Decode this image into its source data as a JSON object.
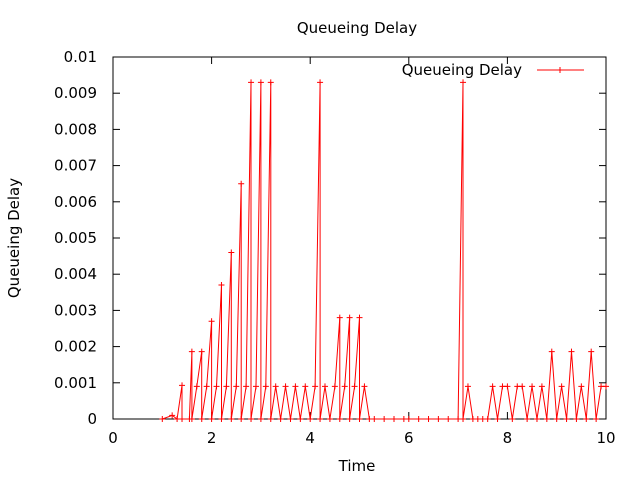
{
  "chart_data": {
    "type": "line",
    "title": "Queueing Delay",
    "xlabel": "Time",
    "ylabel": "Queueing Delay",
    "xlim": [
      0,
      10
    ],
    "ylim": [
      0,
      0.01
    ],
    "x_ticks": [
      "0",
      "2",
      "4",
      "6",
      "8",
      "10"
    ],
    "x_tick_values": [
      0,
      2,
      4,
      6,
      8,
      10
    ],
    "y_ticks": [
      "0",
      "0.001",
      "0.002",
      "0.003",
      "0.004",
      "0.005",
      "0.006",
      "0.007",
      "0.008",
      "0.009",
      "0.01"
    ],
    "y_tick_values": [
      0,
      0.001,
      0.002,
      0.003,
      0.004,
      0.005,
      0.006,
      0.007,
      0.008,
      0.009,
      0.01
    ],
    "grid": false,
    "legend_position": "top-right",
    "series": [
      {
        "name": "Queueing Delay",
        "color": "#ff0000",
        "marker": "plus",
        "x": [
          1.0,
          1.2,
          1.3,
          1.4,
          1.4,
          1.55,
          1.6,
          1.6,
          1.7,
          1.8,
          1.8,
          1.9,
          2.0,
          2.0,
          2.1,
          2.2,
          2.2,
          2.3,
          2.4,
          2.4,
          2.5,
          2.6,
          2.6,
          2.7,
          2.8,
          2.8,
          2.9,
          3.0,
          3.0,
          3.1,
          3.2,
          3.2,
          3.3,
          3.4,
          3.5,
          3.6,
          3.7,
          3.8,
          3.9,
          4.0,
          4.1,
          4.2,
          4.2,
          4.3,
          4.4,
          4.5,
          4.6,
          4.6,
          4.7,
          4.8,
          4.8,
          4.9,
          5.0,
          5.0,
          5.1,
          5.2,
          5.3,
          5.5,
          5.7,
          5.9,
          6.0,
          6.2,
          6.4,
          6.6,
          6.8,
          7.0,
          7.1,
          7.1,
          7.2,
          7.3,
          7.4,
          7.5,
          7.6,
          7.7,
          7.8,
          7.9,
          8.0,
          8.1,
          8.2,
          8.3,
          8.4,
          8.5,
          8.6,
          8.7,
          8.8,
          8.9,
          9.0,
          9.1,
          9.2,
          9.3,
          9.4,
          9.5,
          9.6,
          9.7,
          9.8,
          9.9,
          10.0
        ],
        "y": [
          0,
          0.0001,
          0,
          0.00093,
          0,
          0,
          0.00186,
          0,
          0.0009,
          0.00186,
          0,
          0.0009,
          0.0027,
          0,
          0.0009,
          0.0037,
          0,
          0.0009,
          0.0046,
          0,
          0.0009,
          0.0065,
          0,
          0.0009,
          0.0093,
          0,
          0.0009,
          0.0093,
          0,
          0.0009,
          0.0093,
          0,
          0.0009,
          0,
          0.0009,
          0,
          0.0009,
          0,
          0.0009,
          0,
          0.0009,
          0.0093,
          0,
          0.0009,
          0,
          0.0009,
          0.0028,
          0,
          0.0009,
          0.0028,
          0,
          0.0009,
          0.0028,
          0,
          0.0009,
          0,
          0,
          0,
          0,
          0,
          0,
          0,
          0,
          0,
          0,
          0,
          0.0093,
          0,
          0.0009,
          0,
          0,
          0,
          0,
          0.0009,
          0,
          0.0009,
          0.0009,
          0,
          0.0009,
          0.0009,
          0,
          0.0009,
          0,
          0.0009,
          0,
          0.00186,
          0,
          0.0009,
          0,
          0.00186,
          0,
          0.0009,
          0,
          0.00186,
          0,
          0.0009,
          0.0009
        ]
      }
    ]
  }
}
